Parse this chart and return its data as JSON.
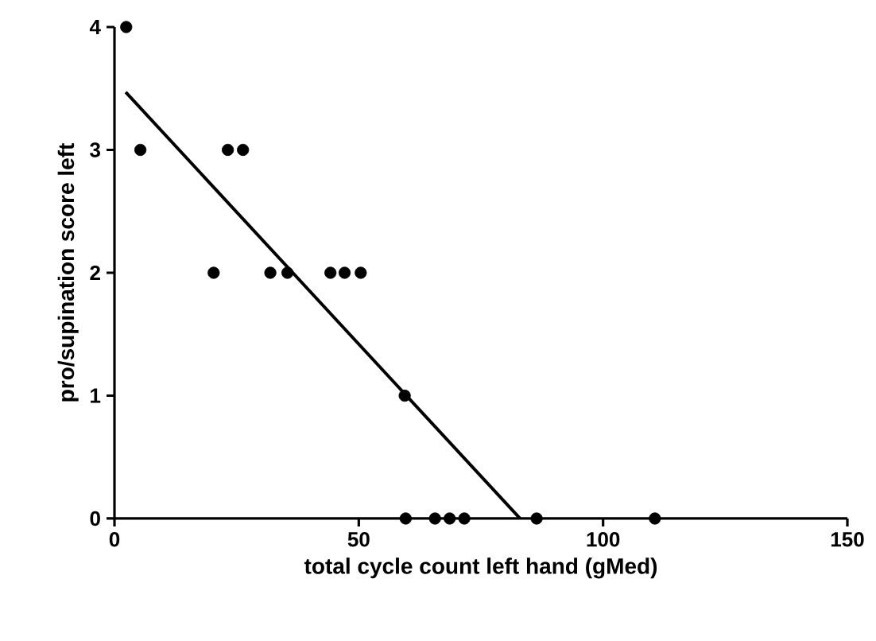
{
  "chart_data": {
    "type": "scatter",
    "xlabel": "total cycle count left hand (gMed)",
    "ylabel": "pro/supination score left",
    "xlim": [
      0,
      150
    ],
    "ylim": [
      0,
      4
    ],
    "xticks": [
      0,
      50,
      100,
      150
    ],
    "yticks": [
      0,
      1,
      2,
      3,
      4
    ],
    "series": [
      {
        "marker": "circle",
        "color": "#000000",
        "x": [
          2.4,
          5.3,
          23.2,
          26.3,
          20.3,
          31.9,
          35.4,
          44.2,
          47.1,
          50.4,
          59.4,
          59.6,
          65.6,
          68.6,
          71.6,
          86.4,
          110.6
        ],
        "values": [
          4,
          3,
          3,
          3,
          2,
          2,
          2,
          2,
          2,
          2,
          1,
          0,
          0,
          0,
          0,
          0,
          0
        ]
      },
      {
        "type": "line",
        "marker": "none",
        "color": "#000000",
        "x": [
          2.3,
          83.0
        ],
        "values": [
          3.47,
          0
        ]
      }
    ]
  }
}
